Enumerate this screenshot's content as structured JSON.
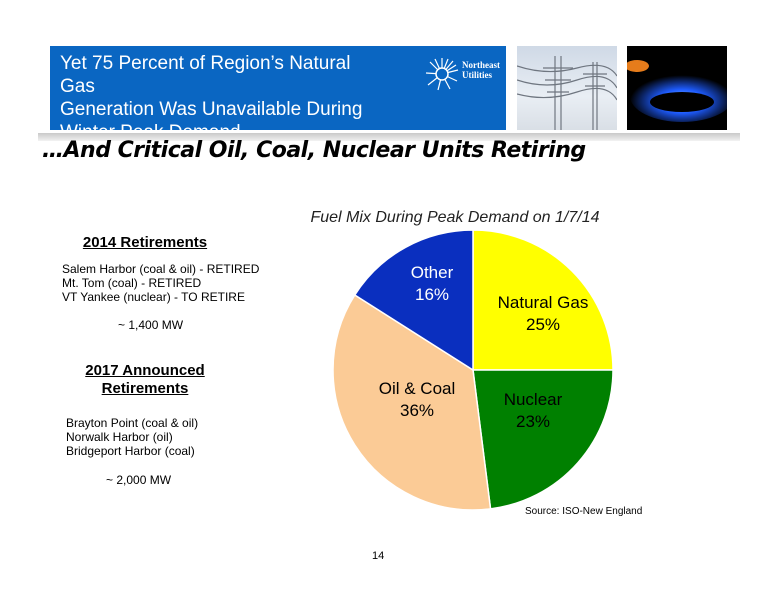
{
  "header": {
    "title": "Yet 75 Percent of Region’s Natural Gas\nGeneration Was Unavailable During\nWinter Peak Demand…",
    "logo_text": "Northeast\nUtilities",
    "subtitle": "…And Critical Oil, Coal, Nuclear Units Retiring"
  },
  "left_column": {
    "retirements_2014": {
      "heading": "2014 Retirements",
      "items": [
        "Salem Harbor (coal & oil) - RETIRED",
        "Mt. Tom (coal) - RETIRED",
        "VT Yankee (nuclear) - TO RETIRE"
      ],
      "total": "~ 1,400 MW"
    },
    "retirements_2017": {
      "heading_line1": "2017 Announced",
      "heading_line2": "Retirements",
      "items": [
        "Brayton Point (coal & oil)",
        "Norwalk Harbor (oil)",
        "Bridgeport Harbor (coal)"
      ],
      "total": "~ 2,000 MW"
    }
  },
  "chart_data": {
    "type": "pie",
    "title": "Fuel Mix During Peak Demand on 1/7/14",
    "slices": [
      {
        "label": "Natural Gas",
        "value": 25,
        "value_label": "25%",
        "color": "#ffff00"
      },
      {
        "label": "Nuclear",
        "value": 23,
        "value_label": "23%",
        "color": "#008000"
      },
      {
        "label": "Oil & Coal",
        "value": 36,
        "value_label": "36%",
        "color": "#fbcb96"
      },
      {
        "label": "Other",
        "value": 16,
        "value_label": "16%",
        "color": "#0a2fbf"
      }
    ],
    "start": "12 o'clock",
    "direction": "clockwise"
  },
  "footer": {
    "source": "Source:  ISO-New England",
    "page_number": "14"
  }
}
